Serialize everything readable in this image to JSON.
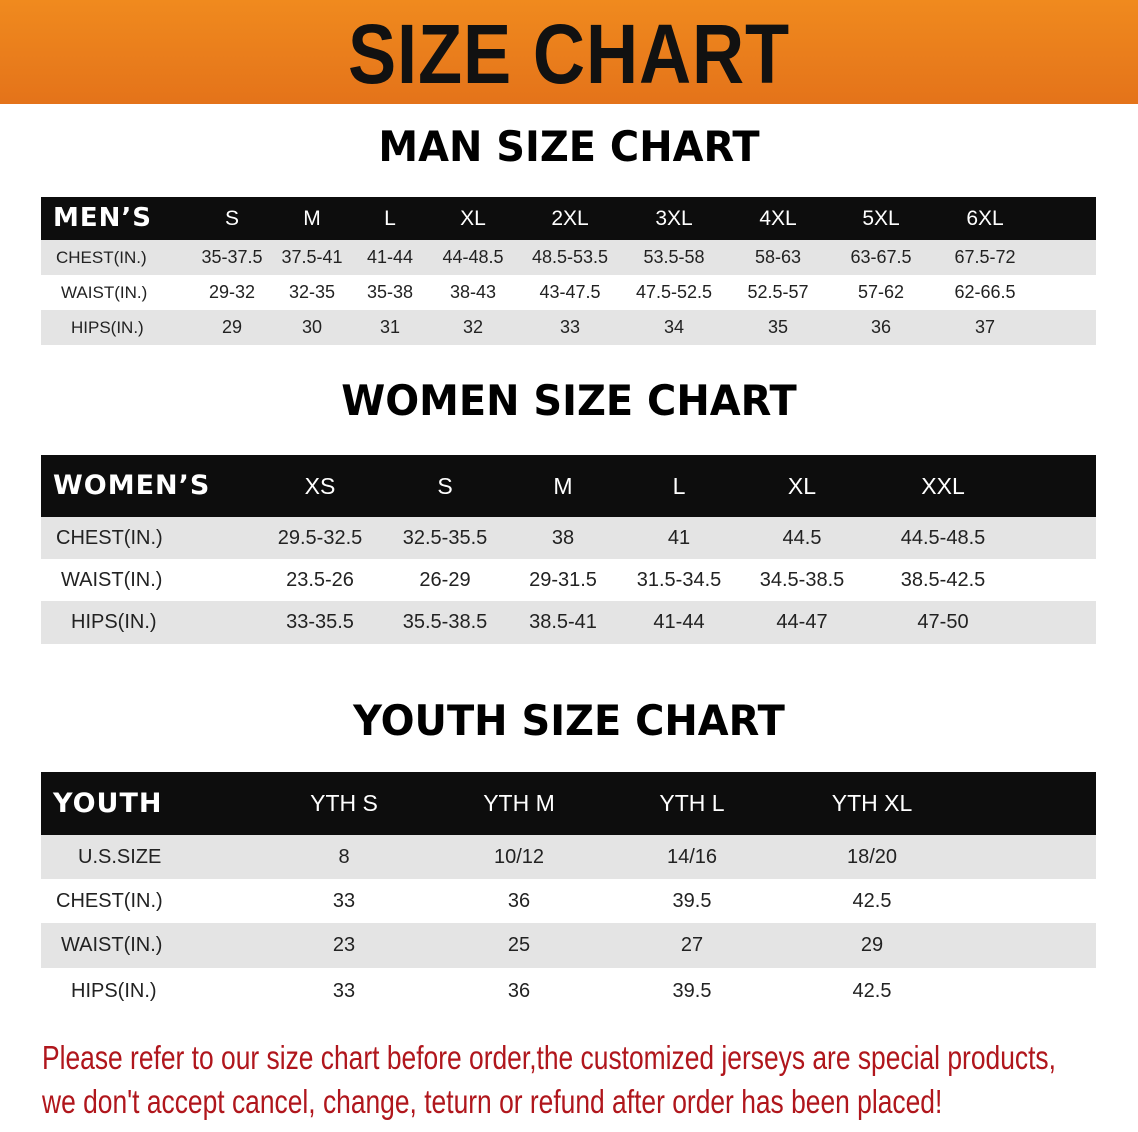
{
  "banner": {
    "title": "SIZE CHART"
  },
  "men": {
    "title": "MAN SIZE CHART",
    "header": "MEN’S",
    "sizes": [
      "S",
      "M",
      "L",
      "XL",
      "2XL",
      "3XL",
      "4XL",
      "5XL",
      "6XL"
    ],
    "rows": [
      {
        "label": "CHEST(IN.)",
        "values": [
          "35-37.5",
          "37.5-41",
          "41-44",
          "44-48.5",
          "48.5-53.5",
          "53.5-58",
          "58-63",
          "63-67.5",
          "67.5-72"
        ]
      },
      {
        "label": "WAIST(IN.)",
        "values": [
          "29-32",
          "32-35",
          "35-38",
          "38-43",
          "43-47.5",
          "47.5-52.5",
          "52.5-57",
          "57-62",
          "62-66.5"
        ]
      },
      {
        "label": "HIPS(IN.)",
        "values": [
          "29",
          "30",
          "31",
          "32",
          "33",
          "34",
          "35",
          "36",
          "37"
        ]
      }
    ]
  },
  "women": {
    "title": "WOMEN SIZE CHART",
    "header": "WOMEN’S",
    "sizes": [
      "XS",
      "S",
      "M",
      "L",
      "XL",
      "XXL"
    ],
    "rows": [
      {
        "label": "CHEST(IN.)",
        "values": [
          "29.5-32.5",
          "32.5-35.5",
          "38",
          "41",
          "44.5",
          "44.5-48.5"
        ]
      },
      {
        "label": "WAIST(IN.)",
        "values": [
          "23.5-26",
          "26-29",
          "29-31.5",
          "31.5-34.5",
          "34.5-38.5",
          "38.5-42.5"
        ]
      },
      {
        "label": "HIPS(IN.)",
        "values": [
          "33-35.5",
          "35.5-38.5",
          "38.5-41",
          "41-44",
          "44-47",
          "47-50"
        ]
      }
    ]
  },
  "youth": {
    "title": "YOUTH SIZE CHART",
    "header": "YOUTH",
    "sizes": [
      "YTH S",
      "YTH M",
      "YTH L",
      "YTH XL"
    ],
    "rows": [
      {
        "label": "U.S.SIZE",
        "values": [
          "8",
          "10/12",
          "14/16",
          "18/20"
        ]
      },
      {
        "label": "CHEST(IN.)",
        "values": [
          "33",
          "36",
          "39.5",
          "42.5"
        ]
      },
      {
        "label": "WAIST(IN.)",
        "values": [
          "23",
          "25",
          "27",
          "29"
        ]
      },
      {
        "label": "HIPS(IN.)",
        "values": [
          "33",
          "36",
          "39.5",
          "42.5"
        ]
      }
    ]
  },
  "note": {
    "line1": "Please refer to our size chart before order,the customized jerseys are special products,",
    "line2": "we don't accept cancel, change, teturn or refund after order has been placed!"
  },
  "colors": {
    "banner": "#ec7f1c",
    "header": "#0d0d0d",
    "row_shade": "#e4e4e4",
    "note": "#b0161c"
  }
}
